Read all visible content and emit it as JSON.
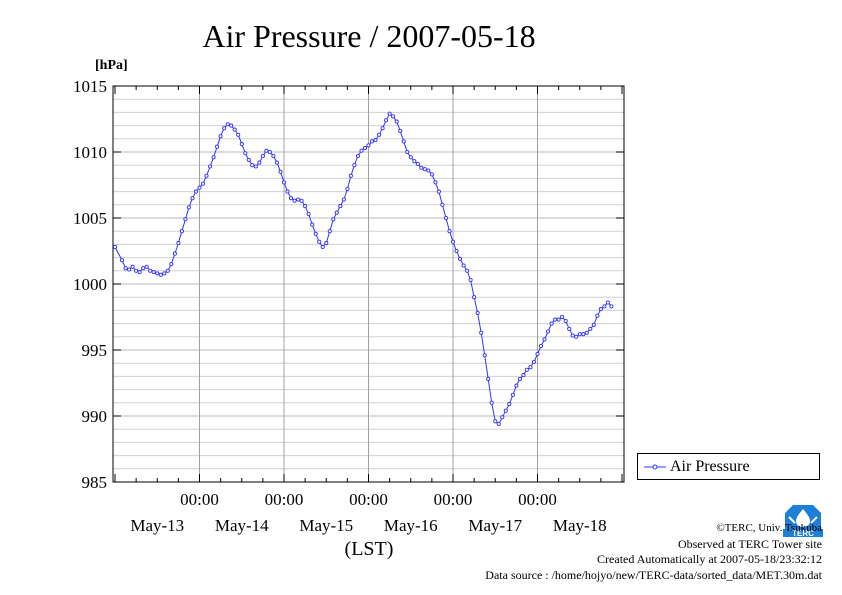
{
  "chart_data": {
    "type": "line",
    "title": "Air Pressure / 2007-05-18",
    "ylabel": "[hPa]",
    "xlabel": "(LST)",
    "ylim": [
      985,
      1015
    ],
    "yticks": [
      "985",
      "990",
      "995",
      "1000",
      "1005",
      "1010",
      "1015"
    ],
    "xlim_hours": [
      0,
      144
    ],
    "x_time_labels": [
      "00:00",
      "00:00",
      "00:00",
      "00:00",
      "00:00"
    ],
    "x_date_labels": [
      "May-13",
      "May-14",
      "May-15",
      "May-16",
      "May-17",
      "May-18"
    ],
    "grid": true,
    "legend_position": "right",
    "series": [
      {
        "name": "Air Pressure",
        "color": "#3333ff",
        "points": [
          [
            0,
            1002.8
          ],
          [
            2,
            1001.8
          ],
          [
            3,
            1001.2
          ],
          [
            4,
            1001.1
          ],
          [
            5,
            1001.3
          ],
          [
            6,
            1001.0
          ],
          [
            7,
            1000.9
          ],
          [
            8,
            1001.2
          ],
          [
            9,
            1001.3
          ],
          [
            10,
            1001.0
          ],
          [
            11,
            1000.9
          ],
          [
            12,
            1000.8
          ],
          [
            13,
            1000.7
          ],
          [
            14,
            1000.8
          ],
          [
            15,
            1001.0
          ],
          [
            16,
            1001.5
          ],
          [
            17,
            1002.3
          ],
          [
            18,
            1003.1
          ],
          [
            19,
            1004.0
          ],
          [
            20,
            1004.9
          ],
          [
            21,
            1005.8
          ],
          [
            22,
            1006.5
          ],
          [
            23,
            1007.0
          ],
          [
            24,
            1007.3
          ],
          [
            25,
            1007.6
          ],
          [
            26,
            1008.2
          ],
          [
            27,
            1008.9
          ],
          [
            28,
            1009.6
          ],
          [
            29,
            1010.4
          ],
          [
            30,
            1011.2
          ],
          [
            31,
            1011.8
          ],
          [
            32,
            1012.1
          ],
          [
            33,
            1012.0
          ],
          [
            34,
            1011.7
          ],
          [
            35,
            1011.3
          ],
          [
            36,
            1010.6
          ],
          [
            37,
            1009.9
          ],
          [
            38,
            1009.4
          ],
          [
            39,
            1009.0
          ],
          [
            40,
            1008.9
          ],
          [
            41,
            1009.2
          ],
          [
            42,
            1009.7
          ],
          [
            43,
            1010.1
          ],
          [
            44,
            1010.0
          ],
          [
            45,
            1009.7
          ],
          [
            46,
            1009.2
          ],
          [
            47,
            1008.5
          ],
          [
            48,
            1007.7
          ],
          [
            49,
            1007.0
          ],
          [
            50,
            1006.5
          ],
          [
            51,
            1006.3
          ],
          [
            52,
            1006.4
          ],
          [
            53,
            1006.3
          ],
          [
            54,
            1005.9
          ],
          [
            55,
            1005.3
          ],
          [
            56,
            1004.5
          ],
          [
            57,
            1003.8
          ],
          [
            58,
            1003.2
          ],
          [
            59,
            1002.8
          ],
          [
            60,
            1003.1
          ],
          [
            61,
            1004.0
          ],
          [
            62,
            1004.9
          ],
          [
            63,
            1005.4
          ],
          [
            64,
            1005.9
          ],
          [
            65,
            1006.4
          ],
          [
            66,
            1007.2
          ],
          [
            67,
            1008.2
          ],
          [
            68,
            1009.0
          ],
          [
            69,
            1009.7
          ],
          [
            70,
            1010.1
          ],
          [
            71,
            1010.3
          ],
          [
            72,
            1010.5
          ],
          [
            73,
            1010.8
          ],
          [
            74,
            1010.9
          ],
          [
            75,
            1011.3
          ],
          [
            76,
            1011.8
          ],
          [
            77,
            1012.4
          ],
          [
            78,
            1012.9
          ],
          [
            79,
            1012.7
          ],
          [
            80,
            1012.3
          ],
          [
            81,
            1011.6
          ],
          [
            82,
            1010.8
          ],
          [
            83,
            1010.0
          ],
          [
            84,
            1009.6
          ],
          [
            85,
            1009.3
          ],
          [
            86,
            1009.1
          ],
          [
            87,
            1008.8
          ],
          [
            88,
            1008.7
          ],
          [
            89,
            1008.6
          ],
          [
            90,
            1008.3
          ],
          [
            91,
            1007.7
          ],
          [
            92,
            1007.0
          ],
          [
            93,
            1006.0
          ],
          [
            94,
            1005.0
          ],
          [
            95,
            1004.0
          ],
          [
            96,
            1003.2
          ],
          [
            97,
            1002.5
          ],
          [
            98,
            1001.9
          ],
          [
            99,
            1001.4
          ],
          [
            100,
            1001.0
          ],
          [
            101,
            1000.3
          ],
          [
            102,
            999.0
          ],
          [
            103,
            997.8
          ],
          [
            104,
            996.3
          ],
          [
            105,
            994.6
          ],
          [
            106,
            992.8
          ],
          [
            107,
            991.0
          ],
          [
            108,
            989.6
          ],
          [
            109,
            989.4
          ],
          [
            110,
            989.9
          ],
          [
            111,
            990.4
          ],
          [
            112,
            990.9
          ],
          [
            113,
            991.6
          ],
          [
            114,
            992.3
          ],
          [
            115,
            992.8
          ],
          [
            116,
            993.1
          ],
          [
            117,
            993.5
          ],
          [
            118,
            993.7
          ],
          [
            119,
            994.1
          ],
          [
            120,
            994.7
          ],
          [
            121,
            995.3
          ],
          [
            122,
            995.8
          ],
          [
            123,
            996.4
          ],
          [
            124,
            997.0
          ],
          [
            125,
            997.3
          ],
          [
            126,
            997.3
          ],
          [
            127,
            997.5
          ],
          [
            128,
            997.2
          ],
          [
            129,
            996.6
          ],
          [
            130,
            996.1
          ],
          [
            131,
            996.0
          ],
          [
            132,
            996.2
          ],
          [
            133,
            996.2
          ],
          [
            134,
            996.3
          ],
          [
            135,
            996.6
          ],
          [
            136,
            996.9
          ],
          [
            137,
            997.6
          ],
          [
            138,
            998.1
          ],
          [
            139,
            998.3
          ],
          [
            140,
            998.6
          ],
          [
            141,
            998.3
          ]
        ]
      }
    ]
  },
  "legend": {
    "label": "Air Pressure"
  },
  "credits": {
    "org": "©TERC, Univ. Tsukuba",
    "observed": "Observed at TERC Tower site",
    "created": "Created Automatically at 2007-05-18/23:32:12",
    "source": "Data source : /home/hojyo/new/TERC-data/sorted_data/MET.30m.dat"
  },
  "logo": {
    "text": "TERC",
    "color": "#1e7fd6"
  }
}
